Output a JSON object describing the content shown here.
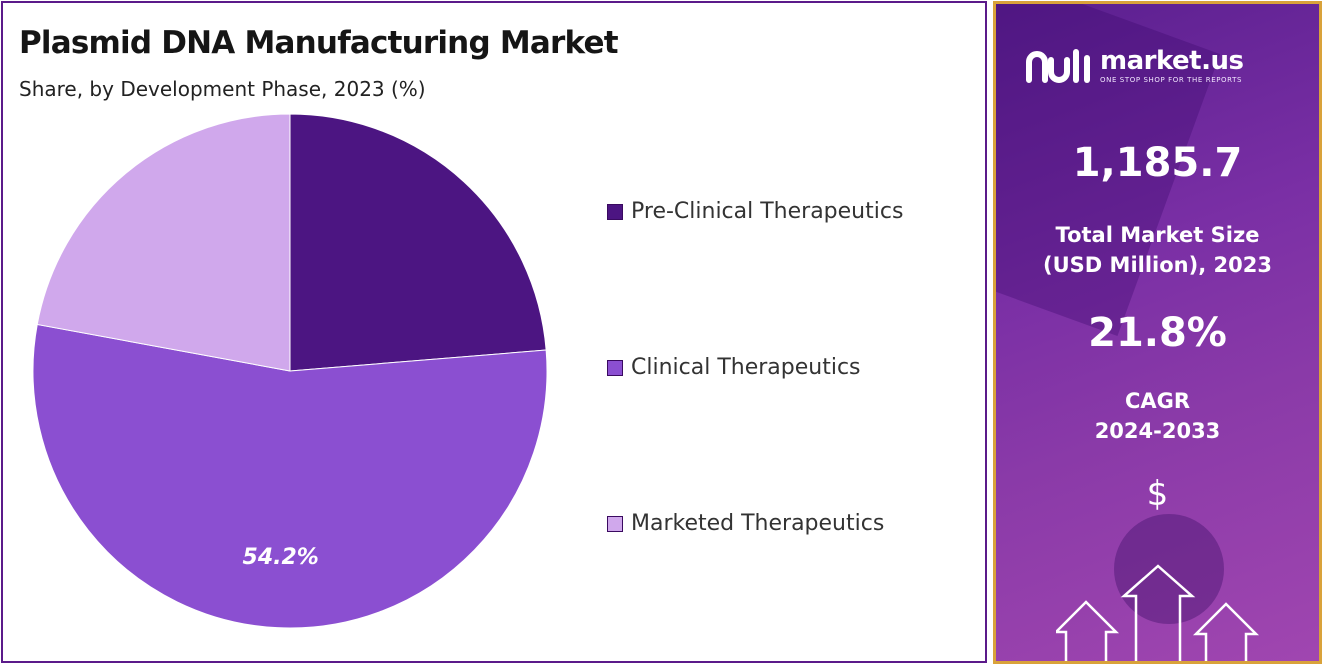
{
  "title": "Plasmid DNA Manufacturing Market",
  "subtitle": "Share, by Development Phase, 2023 (%)",
  "chart_data": {
    "type": "pie",
    "title": "Plasmid DNA Manufacturing Market",
    "subtitle": "Share, by Development Phase, 2023 (%)",
    "legend_position": "right",
    "slices": [
      {
        "label": "Pre-Clinical Therapeutics",
        "value": 23.7,
        "color": "#4c1582",
        "data_label": ""
      },
      {
        "label": "Clinical Therapeutics",
        "value": 54.2,
        "color": "#8b4fd1",
        "data_label": "54.2%"
      },
      {
        "label": "Marketed Therapeutics",
        "value": 22.1,
        "color": "#d0a8ec",
        "data_label": ""
      }
    ]
  },
  "side_panel": {
    "brand_name": "market.us",
    "brand_tagline": "ONE STOP SHOP FOR THE REPORTS",
    "market_size_value": "1,185.7",
    "market_size_label_line1": "Total Market Size",
    "market_size_label_line2": "(USD Million), 2023",
    "cagr_value": "21.8%",
    "cagr_label_line1": "CAGR",
    "cagr_label_line2": "2024-2033",
    "currency_symbol": "$"
  },
  "colors": {
    "frame_border": "#5b1a8a",
    "panel_border": "#d9a23a",
    "panel_purple": "#7a2fa5"
  }
}
